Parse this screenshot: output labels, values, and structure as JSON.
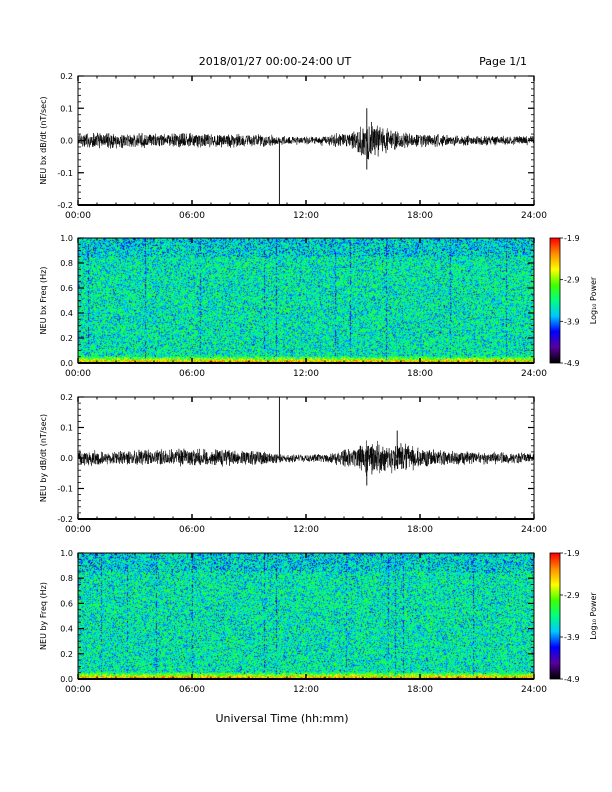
{
  "header": {
    "title": "2018/01/27  00:00-24:00 UT",
    "page": "Page 1/1"
  },
  "footer": {
    "xlabel": "Universal Time (hh:mm)"
  },
  "colorbar": {
    "label": "Log₁₀ Power",
    "ticks": [
      "-1.9",
      "-2.9",
      "-3.9",
      "-4.9"
    ],
    "tick_values": [
      -1.9,
      -2.9,
      -3.9,
      -4.9
    ],
    "range": [
      -4.9,
      -1.9
    ],
    "colormap": [
      "#000000",
      "#5a00a0",
      "#0000ff",
      "#00c8ff",
      "#00ff80",
      "#40ff00",
      "#ffff00",
      "#ff9000",
      "#ff0000"
    ]
  },
  "chart_data": [
    {
      "type": "line",
      "ylabel": "NEU bx dB/dt (nT/sec)",
      "xlim": [
        0,
        24
      ],
      "ylim": [
        -0.2,
        0.2
      ],
      "x_ticks": [
        "00:00",
        "06:00",
        "12:00",
        "18:00",
        "24:00"
      ],
      "y_ticks": [
        "0.2",
        "0.1",
        "0.0",
        "-0.1",
        "-0.2"
      ],
      "y_tick_values": [
        0.2,
        0.1,
        0.0,
        -0.1,
        -0.2
      ],
      "envelope": {
        "hours": [
          0,
          2,
          4,
          6,
          8,
          10,
          10.6,
          11.5,
          13,
          14.5,
          15.2,
          16,
          17,
          18,
          20,
          22,
          24
        ],
        "amplitude": [
          0.025,
          0.022,
          0.02,
          0.022,
          0.02,
          0.018,
          0.012,
          0.012,
          0.015,
          0.025,
          0.055,
          0.04,
          0.025,
          0.02,
          0.015,
          0.013,
          0.013
        ]
      },
      "spikes": [
        {
          "hour": 10.6,
          "value": -0.2
        },
        {
          "hour": 15.2,
          "value": 0.1
        },
        {
          "hour": 15.2,
          "value": -0.09
        }
      ]
    },
    {
      "type": "heatmap",
      "ylabel": "NEU bx Freq (Hz)",
      "xlim": [
        0,
        24
      ],
      "ylim": [
        0.0,
        1.0
      ],
      "x_ticks": [
        "00:00",
        "06:00",
        "12:00",
        "18:00",
        "24:00"
      ],
      "y_ticks": [
        "1.0",
        "0.8",
        "0.6",
        "0.4",
        "0.2",
        "0.0"
      ],
      "y_tick_values": [
        1.0,
        0.8,
        0.6,
        0.4,
        0.2,
        0.0
      ],
      "z_range": [
        -4.9,
        -1.9
      ],
      "dark_stripes_hours": [
        0.5,
        3.5,
        6.4,
        9.8,
        10.4,
        13.5,
        14.3,
        16.2,
        19.6,
        22.5
      ]
    },
    {
      "type": "line",
      "ylabel": "NEU by dB/dt (nT/sec)",
      "xlim": [
        0,
        24
      ],
      "ylim": [
        -0.2,
        0.2
      ],
      "x_ticks": [
        "00:00",
        "06:00",
        "12:00",
        "18:00",
        "24:00"
      ],
      "y_ticks": [
        "0.2",
        "0.1",
        "0.0",
        "-0.1",
        "-0.2"
      ],
      "y_tick_values": [
        0.2,
        0.1,
        0.0,
        -0.1,
        -0.2
      ],
      "envelope": {
        "hours": [
          0,
          2,
          4,
          6,
          8,
          10,
          10.6,
          11.5,
          13,
          14.5,
          15.2,
          16,
          17,
          18,
          20,
          22,
          24
        ],
        "amplitude": [
          0.025,
          0.022,
          0.025,
          0.03,
          0.025,
          0.02,
          0.015,
          0.012,
          0.012,
          0.03,
          0.055,
          0.05,
          0.045,
          0.03,
          0.02,
          0.018,
          0.016
        ]
      },
      "spikes": [
        {
          "hour": 10.6,
          "value": 0.2
        },
        {
          "hour": 16.8,
          "value": 0.09
        },
        {
          "hour": 15.2,
          "value": -0.09
        }
      ]
    },
    {
      "type": "heatmap",
      "ylabel": "NEU by Freq (Hz)",
      "xlim": [
        0,
        24
      ],
      "ylim": [
        0.0,
        1.0
      ],
      "x_ticks": [
        "00:00",
        "06:00",
        "12:00",
        "18:00",
        "24:00"
      ],
      "y_ticks": [
        "1.0",
        "0.8",
        "0.6",
        "0.4",
        "0.2",
        "0.0"
      ],
      "y_tick_values": [
        1.0,
        0.8,
        0.6,
        0.4,
        0.2,
        0.0
      ],
      "z_range": [
        -4.9,
        -1.9
      ],
      "dark_stripes_hours": [
        1.2,
        2.6,
        4.1,
        6.0,
        9.8,
        10.4,
        14.1,
        16.3,
        16.7,
        17.1,
        20.8
      ]
    }
  ]
}
